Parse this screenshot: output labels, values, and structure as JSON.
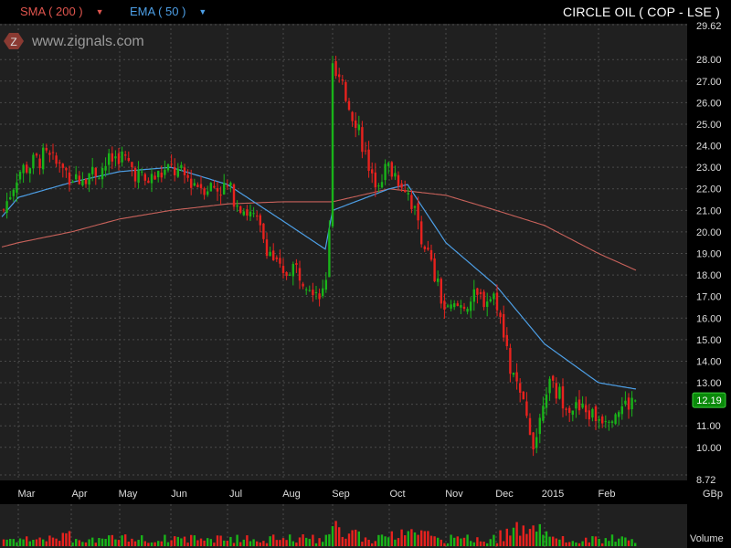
{
  "indicators": {
    "sma_label": "SMA ( 200 )",
    "ema_label": "EMA ( 50 )",
    "caret": "▼",
    "sma_color": "#c9625b",
    "ema_color": "#4d9fe6"
  },
  "ticker": "CIRCLE OIL  ( COP - LSE )",
  "watermark": {
    "logo_letter": "Z",
    "text": "www.zignals.com"
  },
  "currency": "GBp",
  "volume_label": "Volume",
  "last_price_label": "12.19",
  "chart_data": {
    "type": "candlestick",
    "y_ticks": [
      "29.62",
      "28.00",
      "27.00",
      "26.00",
      "25.00",
      "24.00",
      "23.00",
      "22.00",
      "21.00",
      "20.00",
      "19.00",
      "18.00",
      "17.00",
      "16.00",
      "15.00",
      "14.00",
      "13.00",
      "12.00",
      "11.00",
      "10.00",
      "8.72"
    ],
    "ylim": [
      8.72,
      29.62
    ],
    "x_months": [
      "Mar",
      "Apr",
      "May",
      "Jun",
      "Jul",
      "Aug",
      "Sep",
      "Oct",
      "Nov",
      "Dec",
      "2015",
      "Feb"
    ],
    "grid": true,
    "up_color": "#19b419",
    "down_color": "#e8221e",
    "last_price": 12.19,
    "sma200": {
      "points": [
        [
          "start",
          19.3
        ],
        [
          "Mar",
          19.5
        ],
        [
          "Apr",
          20.0
        ],
        [
          "May",
          20.6
        ],
        [
          "Jun",
          21.0
        ],
        [
          "Jul",
          21.3
        ],
        [
          "Aug",
          21.4
        ],
        [
          "Sep",
          21.4
        ],
        [
          "Oct",
          22.0
        ],
        [
          "Nov",
          21.7
        ],
        [
          "Dec",
          21.0
        ],
        [
          "2015",
          20.3
        ],
        [
          "Feb",
          19.0
        ],
        [
          "end",
          18.2
        ]
      ]
    },
    "ema50": {
      "points": [
        [
          "start",
          20.7
        ],
        [
          "Mar",
          21.6
        ],
        [
          "Apr",
          22.3
        ],
        [
          "May",
          22.8
        ],
        [
          "Jun",
          23.0
        ],
        [
          "Jul",
          22.2
        ],
        [
          "Aug",
          20.5
        ],
        [
          "Aug-late",
          19.2
        ],
        [
          "Sep",
          21.0
        ],
        [
          "Oct",
          22.0
        ],
        [
          "Oct-mid",
          22.2
        ],
        [
          "Nov",
          19.5
        ],
        [
          "Dec",
          17.5
        ],
        [
          "2015",
          14.8
        ],
        [
          "Feb",
          13.0
        ],
        [
          "end",
          12.7
        ]
      ]
    },
    "price_path": [
      [
        "start",
        20.8
      ],
      [
        "Mar",
        22.8
      ],
      [
        "Mar-mid",
        23.5
      ],
      [
        "Apr",
        22.6
      ],
      [
        "Apr-mid",
        22.8
      ],
      [
        "May",
        23.6
      ],
      [
        "May-mid",
        22.3
      ],
      [
        "Jun",
        22.9
      ],
      [
        "Jun-mid",
        22.2
      ],
      [
        "Jul",
        22.0
      ],
      [
        "Jul-mid",
        20.5
      ],
      [
        "Aug",
        17.8
      ],
      [
        "Aug-mid",
        18.5
      ],
      [
        "Aug-late",
        17.0
      ],
      [
        "Sep-early",
        21.5
      ],
      [
        "Sep",
        27.5
      ],
      [
        "Sep-mid",
        25.0
      ],
      [
        "Sep-late",
        22.3
      ],
      [
        "Oct",
        23.0
      ],
      [
        "Oct-mid",
        22.0
      ],
      [
        "Nov",
        16.2
      ],
      [
        "Nov-mid",
        16.8
      ],
      [
        "Dec",
        17.0
      ],
      [
        "Dec-early",
        14.0
      ],
      [
        "Dec-mid",
        10.2
      ],
      [
        "Dec-late",
        11.5
      ],
      [
        "2015",
        13.0
      ],
      [
        "2015-mid",
        11.8
      ],
      [
        "Feb",
        11.4
      ],
      [
        "end",
        12.2
      ]
    ]
  }
}
